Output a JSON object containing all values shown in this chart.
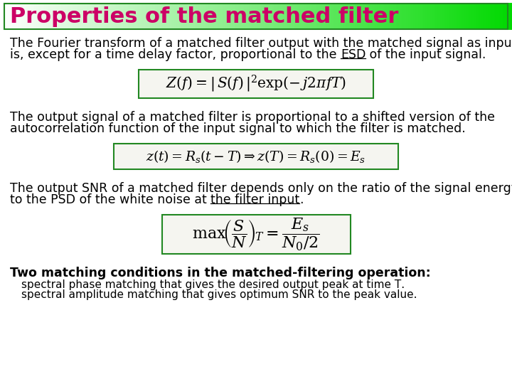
{
  "title": "Properties of the matched filter",
  "title_color": "#cc0066",
  "border_color": "#228822",
  "body_bg": "#ffffff",
  "text_color": "#000000",
  "eq1": "$Z(f) =|\\, S(f)\\,|^2 \\exp(-\\,j2\\pi fT)$",
  "eq2": "$z(t) = R_s(t-T) \\Rightarrow z(T) = R_s(0) = E_s$",
  "eq3": "$\\max\\!\\left(\\dfrac{S}{N}\\right)_{\\!T} = \\dfrac{E_s}{N_0/2}$",
  "grad_steps": 300
}
